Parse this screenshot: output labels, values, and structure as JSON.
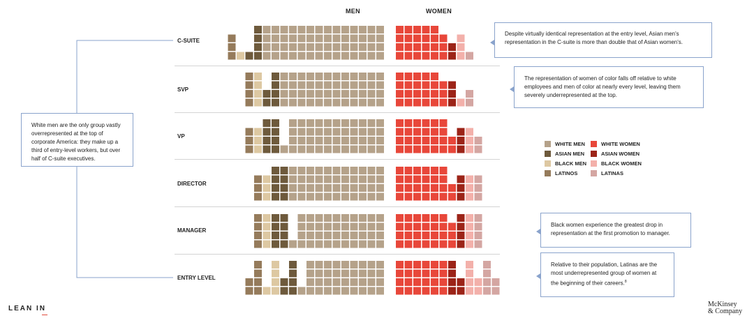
{
  "header": {
    "men_label": "MEN",
    "women_label": "WOMEN"
  },
  "chart_data": {
    "type": "waffle",
    "unit_note": "each cell = 1% of employees at that level; 4 rows per level",
    "groups": [
      "White men",
      "Asian men",
      "Black men",
      "Latinos",
      "White women",
      "Asian women",
      "Black women",
      "Latinas"
    ],
    "colors": {
      "White men": "#b5a28a",
      "Asian men": "#6e5a3c",
      "Black men": "#ddc8a2",
      "Latinos": "#957b5b",
      "White women": "#e8473a",
      "Asian women": "#9c2418",
      "Black women": "#f3b0aa",
      "Latinas": "#d4a6a2"
    },
    "levels": [
      {
        "name": "C-SUITE",
        "men": {
          "White men": 56,
          "Asian men": 5,
          "Black men": 1,
          "Latinos": 3
        },
        "women": {
          "White women": 23,
          "Asian women": 2,
          "Black women": 3,
          "Latinas": 1
        }
      },
      {
        "name": "SVP",
        "men": {
          "White men": 48,
          "Asian men": 6,
          "Black men": 4,
          "Latinos": 4
        },
        "women": {
          "White women": 23,
          "Asian women": 3,
          "Black women": 1,
          "Latinas": 2
        }
      },
      {
        "name": "VP",
        "men": {
          "White men": 45,
          "Asian men": 8,
          "Black men": 3,
          "Latinos": 3
        },
        "women": {
          "White women": 26,
          "Asian women": 3,
          "Black women": 3,
          "Latinas": 2
        }
      },
      {
        "name": "DIRECTOR",
        "men": {
          "White men": 44,
          "Asian men": 8,
          "Black men": 3,
          "Latinos": 3
        },
        "women": {
          "White women": 26,
          "Asian women": 3,
          "Black women": 3,
          "Latinas": 3
        }
      },
      {
        "name": "MANAGER",
        "men": {
          "White men": 41,
          "Asian men": 8,
          "Black men": 4,
          "Latinos": 4
        },
        "women": {
          "White women": 27,
          "Asian women": 4,
          "Black women": 4,
          "Latinas": 4
        }
      },
      {
        "name": "ENTRY LEVEL",
        "men": {
          "White men": 37,
          "Asian men": 6,
          "Black men": 5,
          "Latinos": 6
        },
        "women": {
          "White women": 24,
          "Asian women": 6,
          "Black women": 6,
          "Latinas": 6
        }
      }
    ]
  },
  "callouts": {
    "white_men": "White men are the only group vastly overrepresented at the top of corporate America: they make up a third of entry-level workers, but over half of C-suite executives.",
    "asian": "Despite virtually identical representation at the entry level, Asian men's representation in the C-suite is more than double that of Asian women's.",
    "women_of_color": "The representation of women of color falls off relative to white employees and men of color at nearly every level, leaving them severely underrepresented at the top.",
    "black_women": "Black women experience the greatest drop in representation at the first promotion to manager.",
    "latinas": "Relative to their population, Latinas are the most underrepresented group of women at the beginning of their careers.",
    "latinas_footnote": "8"
  },
  "legend": {
    "items": [
      {
        "label": "WHITE MEN",
        "group": "White men"
      },
      {
        "label": "WHITE WOMEN",
        "group": "White women"
      },
      {
        "label": "ASIAN MEN",
        "group": "Asian men"
      },
      {
        "label": "ASIAN WOMEN",
        "group": "Asian women"
      },
      {
        "label": "BLACK MEN",
        "group": "Black men"
      },
      {
        "label": "BLACK WOMEN",
        "group": "Black women"
      },
      {
        "label": "LATINOS",
        "group": "Latinos"
      },
      {
        "label": "LATINAS",
        "group": "Latinas"
      }
    ]
  },
  "logos": {
    "left": "LEAN IN",
    "right_line1": "McKinsey",
    "right_line2": "& Company"
  }
}
